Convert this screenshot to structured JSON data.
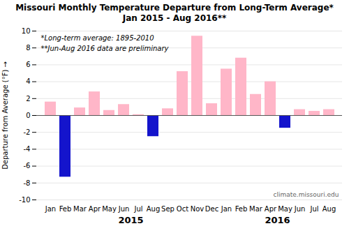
{
  "chart_data": {
    "type": "bar",
    "title": "Missouri Monthly Temperature Departure from Long-Term Average*",
    "subtitle": "Jan 2015 - Aug 2016**",
    "ylabel": "Departure from Average (°F)",
    "annotations": [
      "*Long-term average: 1895-2010",
      "**Jun-Aug 2016 data are preliminary",
      "climate.missouri.edu"
    ],
    "categories": [
      "Jan",
      "Feb",
      "Mar",
      "Apr",
      "May",
      "Jun",
      "Jul",
      "Aug",
      "Sep",
      "Oct",
      "Nov",
      "Dec",
      "Jan",
      "Feb",
      "Mar",
      "Apr",
      "May",
      "Jun",
      "Jul",
      "Aug"
    ],
    "years": [
      "2015",
      "2015",
      "2015",
      "2015",
      "2015",
      "2015",
      "2015",
      "2015",
      "2015",
      "2015",
      "2015",
      "2015",
      "2016",
      "2016",
      "2016",
      "2016",
      "2016",
      "2016",
      "2016",
      "2016"
    ],
    "values": [
      1.6,
      -7.3,
      0.9,
      2.8,
      0.6,
      1.3,
      0.1,
      -2.5,
      0.8,
      5.2,
      9.4,
      1.4,
      5.5,
      6.8,
      2.5,
      4.0,
      -1.5,
      0.7,
      0.5,
      0.7
    ],
    "colors": [
      "#FFB6C8",
      "#1414CC",
      "#FFB6C8",
      "#FFB6C8",
      "#FFB6C8",
      "#FFB6C8",
      "#FFB6C8",
      "#1414CC",
      "#FFB6C8",
      "#FFB6C8",
      "#FFB6C8",
      "#FFB6C8",
      "#FFB6C8",
      "#FFB6C8",
      "#FFB6C8",
      "#FFB6C8",
      "#1414CC",
      "#FFB6C8",
      "#FFB6C8",
      "#FFB6C8"
    ],
    "ylim": [
      -10.0,
      10.0
    ],
    "yticks": [
      -10,
      -8,
      -6,
      -4,
      -2,
      0,
      2,
      4,
      6,
      8,
      10
    ],
    "grid": true
  }
}
